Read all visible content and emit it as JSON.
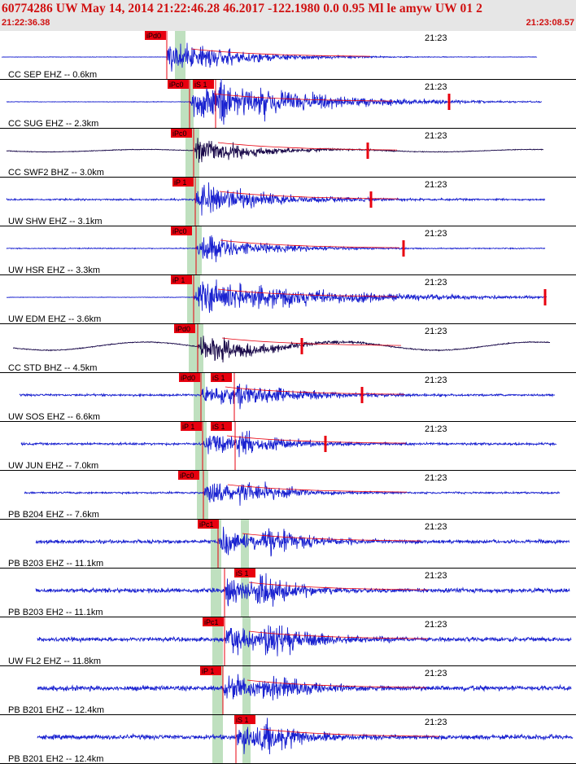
{
  "header": {
    "title": "60774286 UW May 14, 2014 21:22:46.28   46.2017 -122.1980  0.0 0.95 Ml le amyw UW 01   2",
    "start_time": "21:22:36.38",
    "end_time": "21:23:08.57"
  },
  "minute_label": "21:23",
  "colors": {
    "trace": "#1a22d0",
    "dark_trace": "#1a0a4a",
    "pick": "#e8000f",
    "window": "#bfe0bf",
    "header_bg": "#e6e6e6"
  },
  "traces": [
    {
      "label": "CC SEP EHZ -- 0.6km",
      "picks": [
        "iPd0"
      ],
      "dark": false
    },
    {
      "label": "CC SUG EHZ -- 2.3km",
      "picks": [
        "iPc0",
        "iS 1"
      ],
      "dark": false
    },
    {
      "label": "CC SWF2 BHZ -- 3.0km",
      "picks": [
        "iPc0"
      ],
      "dark": true
    },
    {
      "label": "UW SHW EHZ -- 3.1km",
      "picks": [
        "iP 1"
      ],
      "dark": false
    },
    {
      "label": "UW HSR EHZ -- 3.3km",
      "picks": [
        "iPc0"
      ],
      "dark": false
    },
    {
      "label": "UW EDM EHZ -- 3.6km",
      "picks": [
        "iP 1"
      ],
      "dark": false
    },
    {
      "label": "CC STD BHZ -- 4.5km",
      "picks": [
        "iPd0"
      ],
      "dark": true
    },
    {
      "label": "UW SOS EHZ -- 6.6km",
      "picks": [
        "iPd0",
        "iS 1"
      ],
      "dark": false
    },
    {
      "label": "UW JUN EHZ -- 7.0km",
      "picks": [
        "iP 1",
        "iS 1"
      ],
      "dark": false
    },
    {
      "label": "PB B204 EHZ -- 7.6km",
      "picks": [
        "iPc0"
      ],
      "dark": false
    },
    {
      "label": "PB B203 EHZ -- 11.1km",
      "picks": [
        "iPc1"
      ],
      "dark": false
    },
    {
      "label": "PB B203 EH2 -- 11.1km",
      "picks": [
        "iS 1"
      ],
      "dark": false
    },
    {
      "label": "UW FL2 EHZ -- 11.8km",
      "picks": [
        "iPc1"
      ],
      "dark": false
    },
    {
      "label": "PB B201 EHZ -- 12.4km",
      "picks": [
        "iP 1"
      ],
      "dark": false
    },
    {
      "label": "PB B201 EH2 -- 12.4km",
      "picks": [
        "iS 1"
      ],
      "dark": false
    }
  ]
}
